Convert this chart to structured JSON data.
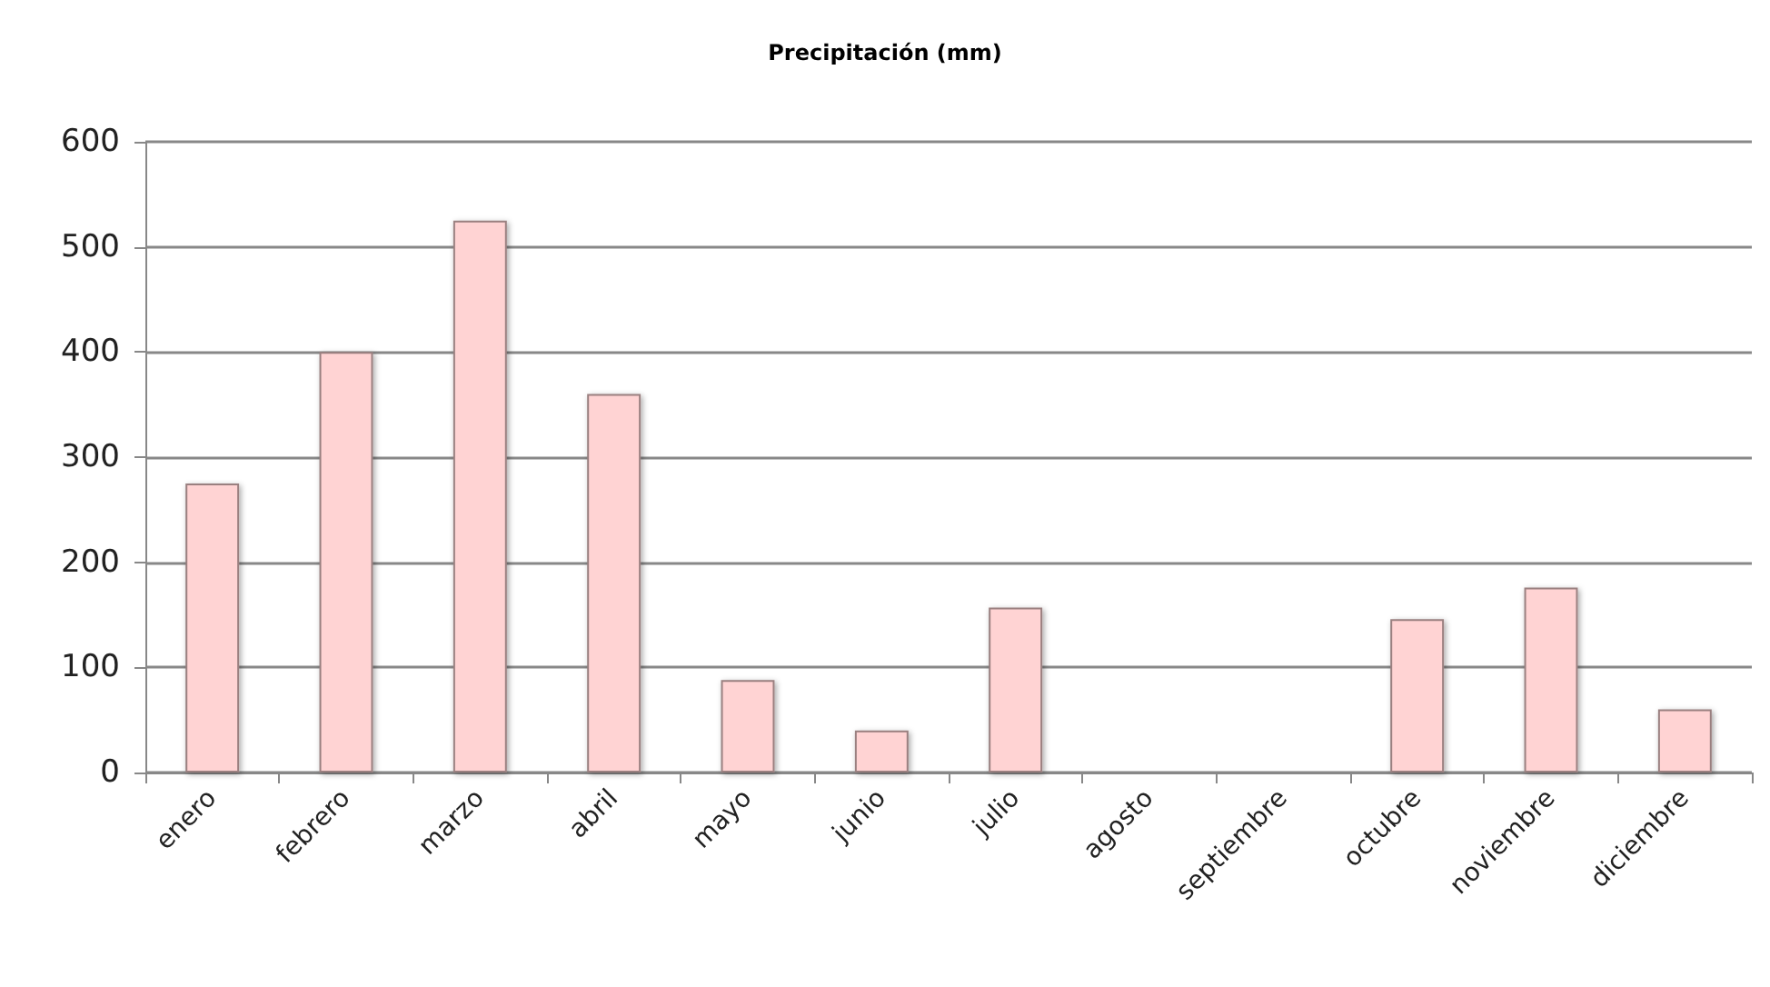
{
  "chart_data": {
    "type": "bar",
    "title": "Precipitación (mm)",
    "categories": [
      "enero",
      "febrero",
      "marzo",
      "abril",
      "mayo",
      "junio",
      "julio",
      "agosto",
      "septiembre",
      "octubre",
      "noviembre",
      "diciembre"
    ],
    "values": [
      275,
      400,
      525,
      360,
      88,
      40,
      157,
      null,
      null,
      146,
      176,
      60
    ],
    "color": "#ffd3d3",
    "ylim": [
      0,
      600
    ],
    "yticks": [
      0,
      100,
      200,
      300,
      400,
      500,
      600
    ],
    "grid": "y"
  }
}
